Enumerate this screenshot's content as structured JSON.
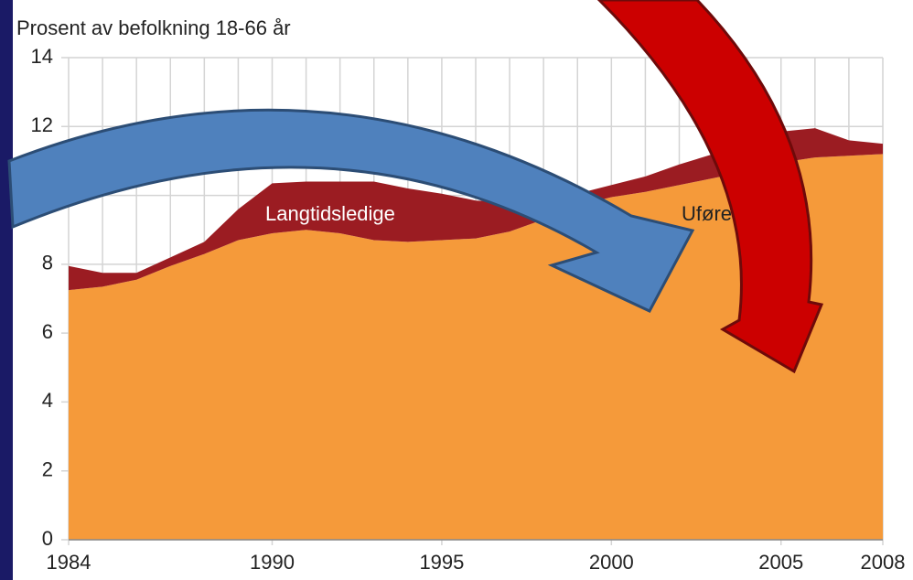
{
  "chart_data": {
    "type": "stacked-area",
    "title": "Prosent av befolkning 18-66 år",
    "x": [
      1984,
      1985,
      1986,
      1987,
      1988,
      1989,
      1990,
      1991,
      1992,
      1993,
      1994,
      1995,
      1996,
      1997,
      1998,
      1999,
      2000,
      2001,
      2002,
      2003,
      2004,
      2005,
      2006,
      2007,
      2008
    ],
    "series": [
      {
        "name": "Uføretrygdede",
        "color": "#f59a3a",
        "values": [
          7.25,
          7.35,
          7.55,
          7.95,
          8.3,
          8.7,
          8.9,
          9.0,
          8.9,
          8.7,
          8.65,
          8.7,
          8.75,
          8.95,
          9.3,
          9.7,
          9.95,
          10.1,
          10.3,
          10.5,
          10.7,
          10.95,
          11.1,
          11.15,
          11.2
        ]
      },
      {
        "name": "Langtidsledige",
        "color": "#9b1c22",
        "values": [
          0.7,
          0.4,
          0.2,
          0.25,
          0.35,
          0.9,
          1.45,
          1.4,
          1.5,
          1.7,
          1.55,
          1.35,
          1.1,
          0.85,
          0.55,
          0.35,
          0.35,
          0.45,
          0.6,
          0.7,
          0.8,
          0.9,
          0.85,
          0.45,
          0.3
        ]
      }
    ],
    "xlim": [
      1984,
      2008
    ],
    "xticks": [
      1984,
      1990,
      1995,
      2000,
      2005,
      2008
    ],
    "ylim": [
      0,
      14
    ],
    "yticks": [
      0,
      2,
      4,
      6,
      8,
      10,
      12,
      14
    ],
    "grid": true
  }
}
